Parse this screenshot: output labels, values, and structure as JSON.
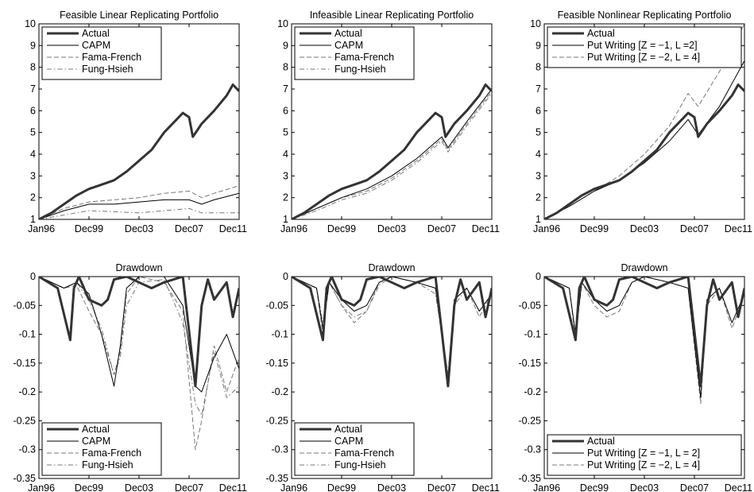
{
  "chart_data": [
    {
      "type": "line",
      "title": "Feasible Linear Replicating Portfolio",
      "xlim": [
        1996.0,
        2012.0
      ],
      "ylim": [
        1,
        10
      ],
      "xticks": [
        "Jan96",
        "Dec99",
        "Dec03",
        "Dec07",
        "Dec11"
      ],
      "yticks": [
        "1",
        "2",
        "3",
        "4",
        "5",
        "6",
        "7",
        "8",
        "9",
        "10"
      ],
      "legend": "top-left",
      "grid": false,
      "series": [
        {
          "name": "Actual",
          "style": "thick-solid",
          "x": [
            1996,
            1997,
            1998,
            1999,
            2000,
            2001,
            2002,
            2003,
            2004,
            2005,
            2006,
            2007,
            2007.5,
            2008,
            2008.3,
            2009,
            2010,
            2011,
            2011.5,
            2012
          ],
          "values": [
            1.0,
            1.3,
            1.7,
            2.1,
            2.4,
            2.6,
            2.8,
            3.2,
            3.7,
            4.2,
            5.0,
            5.6,
            5.9,
            5.7,
            4.8,
            5.4,
            6.0,
            6.7,
            7.2,
            6.9
          ]
        },
        {
          "name": "CAPM",
          "style": "solid",
          "x": [
            1996,
            1998,
            2000,
            2002,
            2004,
            2006,
            2008,
            2009,
            2010,
            2012
          ],
          "values": [
            1.0,
            1.4,
            1.7,
            1.7,
            1.8,
            1.9,
            1.9,
            1.7,
            1.9,
            2.2
          ]
        },
        {
          "name": "Fama-French",
          "style": "dashed",
          "x": [
            1996,
            1998,
            2000,
            2002,
            2004,
            2006,
            2008,
            2009,
            2010,
            2012
          ],
          "values": [
            1.0,
            1.5,
            1.8,
            1.9,
            2.0,
            2.2,
            2.3,
            2.0,
            2.2,
            2.55
          ]
        },
        {
          "name": "Fung-Hsieh",
          "style": "dash-dot",
          "x": [
            1996,
            1998,
            2000,
            2002,
            2004,
            2006,
            2008,
            2009,
            2010,
            2012
          ],
          "values": [
            1.0,
            1.2,
            1.4,
            1.35,
            1.3,
            1.4,
            1.5,
            1.3,
            1.3,
            1.3
          ]
        }
      ]
    },
    {
      "type": "line",
      "title": "Infeasible Linear Replicating Portfolio",
      "xlim": [
        1996.0,
        2012.0
      ],
      "ylim": [
        1,
        10
      ],
      "xticks": [
        "Jan96",
        "Dec99",
        "Dec03",
        "Dec07",
        "Dec11"
      ],
      "yticks": [
        "1",
        "2",
        "3",
        "4",
        "5",
        "6",
        "7",
        "8",
        "9",
        "10"
      ],
      "legend": "top-left",
      "grid": false,
      "series": [
        {
          "name": "Actual",
          "style": "thick-solid",
          "x": [
            1996,
            1997,
            1998,
            1999,
            2000,
            2001,
            2002,
            2003,
            2004,
            2005,
            2006,
            2007,
            2007.5,
            2008,
            2008.3,
            2009,
            2010,
            2011,
            2011.5,
            2012
          ],
          "values": [
            1.0,
            1.3,
            1.7,
            2.1,
            2.4,
            2.6,
            2.8,
            3.2,
            3.7,
            4.2,
            5.0,
            5.6,
            5.9,
            5.7,
            4.8,
            5.4,
            6.0,
            6.7,
            7.2,
            6.9
          ]
        },
        {
          "name": "CAPM",
          "style": "solid",
          "x": [
            1996,
            1998,
            2000,
            2002,
            2004,
            2006,
            2008,
            2008.5,
            2010,
            2012
          ],
          "values": [
            1.0,
            1.5,
            2.0,
            2.4,
            3.0,
            3.8,
            4.8,
            4.3,
            5.5,
            7.0
          ]
        },
        {
          "name": "Fama-French",
          "style": "dashed",
          "x": [
            1996,
            1998,
            2000,
            2002,
            2004,
            2006,
            2008,
            2008.5,
            2010,
            2012
          ],
          "values": [
            1.0,
            1.5,
            2.0,
            2.3,
            2.9,
            3.7,
            4.7,
            4.2,
            5.4,
            6.9
          ]
        },
        {
          "name": "Fung-Hsieh",
          "style": "dash-dot",
          "x": [
            1996,
            1998,
            2000,
            2002,
            2004,
            2006,
            2008,
            2008.5,
            2010,
            2012
          ],
          "values": [
            1.0,
            1.4,
            1.9,
            2.2,
            2.8,
            3.6,
            4.6,
            4.1,
            5.3,
            6.8
          ]
        }
      ]
    },
    {
      "type": "line",
      "title": "Feasible Nonlinear Replicating Portfolio",
      "xlim": [
        1996.0,
        2012.0
      ],
      "ylim": [
        1,
        10
      ],
      "xticks": [
        "Jan96",
        "Dec99",
        "Dec03",
        "Dec07",
        "Dec11"
      ],
      "yticks": [
        "1",
        "2",
        "3",
        "4",
        "5",
        "6",
        "7",
        "8",
        "9",
        "10"
      ],
      "legend": "top-left",
      "grid": false,
      "series": [
        {
          "name": "Actual",
          "style": "thick-solid",
          "x": [
            1996,
            1997,
            1998,
            1999,
            2000,
            2001,
            2002,
            2003,
            2004,
            2005,
            2006,
            2007,
            2007.5,
            2008,
            2008.3,
            2009,
            2010,
            2011,
            2011.5,
            2012
          ],
          "values": [
            1.0,
            1.3,
            1.7,
            2.1,
            2.4,
            2.6,
            2.8,
            3.2,
            3.7,
            4.2,
            5.0,
            5.6,
            5.9,
            5.7,
            4.8,
            5.4,
            6.0,
            6.7,
            7.2,
            6.9
          ]
        },
        {
          "name": "Put Writing [Z = −1, L =2]",
          "style": "solid",
          "x": [
            1996,
            1998,
            2000,
            2002,
            2004,
            2006,
            2007.5,
            2008.3,
            2010,
            2012
          ],
          "values": [
            1.0,
            1.6,
            2.3,
            2.8,
            3.6,
            4.6,
            5.6,
            4.9,
            6.2,
            8.3
          ]
        },
        {
          "name": "Put Writing [Z = −2, L = 4]",
          "style": "dashed",
          "x": [
            1996,
            1998,
            2000,
            2002,
            2004,
            2006,
            2007.5,
            2008.3,
            2010,
            2012
          ],
          "values": [
            1.0,
            1.6,
            2.3,
            3.0,
            4.0,
            5.3,
            6.8,
            6.2,
            7.8,
            10.0
          ]
        }
      ]
    },
    {
      "type": "line",
      "title": "Drawdown",
      "xlim": [
        1996.0,
        2012.0
      ],
      "ylim": [
        -0.35,
        0
      ],
      "xticks": [
        "Jan96",
        "Dec99",
        "Dec03",
        "Dec07",
        "Dec11"
      ],
      "yticks": [
        "0",
        "-0.05",
        "-0.1",
        "-0.15",
        "-0.2",
        "-0.25",
        "-0.3",
        "-0.35"
      ],
      "legend": "bottom-left",
      "grid": false,
      "series": [
        {
          "name": "Actual",
          "style": "thick-solid",
          "x": [
            1996,
            1997.5,
            1998.5,
            1998.8,
            1999.2,
            2000,
            2001,
            2001.5,
            2002,
            2003,
            2004,
            2005,
            2006,
            2007.5,
            2008.5,
            2009,
            2009.5,
            2010,
            2011,
            2011.5,
            2012
          ],
          "values": [
            0,
            -0.02,
            -0.11,
            -0.02,
            0,
            -0.04,
            -0.05,
            -0.04,
            -0.005,
            0,
            -0.01,
            -0.02,
            -0.01,
            0,
            -0.19,
            -0.05,
            -0.005,
            -0.04,
            -0.01,
            -0.07,
            -0.02
          ]
        },
        {
          "name": "CAPM",
          "style": "solid",
          "x": [
            1996,
            1998,
            1999,
            2000,
            2001,
            2002,
            2002.5,
            2003,
            2004,
            2006,
            2007.5,
            2008.5,
            2009,
            2010,
            2011,
            2012
          ],
          "values": [
            0,
            -0.02,
            -0.01,
            -0.03,
            -0.1,
            -0.19,
            -0.12,
            -0.02,
            0,
            0,
            -0.05,
            -0.19,
            -0.2,
            -0.14,
            -0.1,
            -0.16
          ]
        },
        {
          "name": "Fama-French",
          "style": "dashed",
          "x": [
            1996,
            1998,
            1999,
            2000,
            2001,
            2002,
            2002.5,
            2003,
            2004,
            2006,
            2007.5,
            2008.5,
            2009,
            2010,
            2011,
            2012
          ],
          "values": [
            0,
            -0.02,
            -0.015,
            -0.06,
            -0.1,
            -0.17,
            -0.13,
            -0.03,
            0,
            -0.01,
            -0.06,
            -0.3,
            -0.25,
            -0.12,
            -0.2,
            -0.14
          ]
        },
        {
          "name": "Fung-Hsieh",
          "style": "dash-dot",
          "x": [
            1996,
            1998,
            1999,
            2000,
            2001,
            2002,
            2002.5,
            2003,
            2004,
            2006,
            2007.5,
            2008.5,
            2009,
            2010,
            2011,
            2012
          ],
          "values": [
            0,
            -0.02,
            -0.01,
            -0.04,
            -0.09,
            -0.17,
            -0.14,
            -0.05,
            -0.01,
            -0.005,
            -0.08,
            -0.22,
            -0.24,
            -0.13,
            -0.21,
            -0.19
          ]
        }
      ]
    },
    {
      "type": "line",
      "title": "Drawdown",
      "xlim": [
        1996.0,
        2012.0
      ],
      "ylim": [
        -0.35,
        0
      ],
      "xticks": [
        "Jan96",
        "Dec99",
        "Dec03",
        "Dec07",
        "Dec11"
      ],
      "yticks": [
        "0",
        "-0.05",
        "-0.1",
        "-0.15",
        "-0.2",
        "-0.25",
        "-0.3",
        "-0.35"
      ],
      "legend": "bottom-left",
      "grid": false,
      "series": [
        {
          "name": "Actual",
          "style": "thick-solid",
          "x": [
            1996,
            1997.5,
            1998.5,
            1998.8,
            1999.2,
            2000,
            2001,
            2001.5,
            2002,
            2003,
            2004,
            2005,
            2006,
            2007.5,
            2008.5,
            2009,
            2009.5,
            2010,
            2011,
            2011.5,
            2012
          ],
          "values": [
            0,
            -0.02,
            -0.11,
            -0.02,
            0,
            -0.04,
            -0.05,
            -0.04,
            -0.005,
            0,
            -0.01,
            -0.02,
            -0.01,
            0,
            -0.19,
            -0.05,
            -0.005,
            -0.04,
            -0.01,
            -0.07,
            -0.02
          ]
        },
        {
          "name": "CAPM",
          "style": "solid",
          "x": [
            1996,
            1998,
            1998.5,
            1999,
            2000,
            2001,
            2002,
            2003,
            2004,
            2006,
            2007.5,
            2008.5,
            2009,
            2010,
            2011,
            2012
          ],
          "values": [
            0,
            -0.02,
            -0.09,
            -0.01,
            -0.04,
            -0.06,
            -0.05,
            -0.01,
            0,
            -0.01,
            -0.02,
            -0.18,
            -0.04,
            -0.02,
            -0.06,
            -0.03
          ]
        },
        {
          "name": "Fama-French",
          "style": "dashed",
          "x": [
            1996,
            1998,
            1998.5,
            1999,
            2000,
            2001,
            2002,
            2003,
            2004,
            2006,
            2007.5,
            2008.5,
            2009,
            2010,
            2011,
            2012
          ],
          "values": [
            0,
            -0.02,
            -0.1,
            -0.01,
            -0.05,
            -0.08,
            -0.06,
            -0.01,
            0,
            -0.01,
            -0.02,
            -0.17,
            -0.04,
            -0.02,
            -0.07,
            -0.03
          ]
        },
        {
          "name": "Fung-Hsieh",
          "style": "dash-dot",
          "x": [
            1996,
            1998,
            1998.5,
            1999,
            2000,
            2001,
            2002,
            2003,
            2004,
            2006,
            2007.5,
            2008.5,
            2009,
            2010,
            2011,
            2012
          ],
          "values": [
            0,
            -0.02,
            -0.08,
            -0.01,
            -0.05,
            -0.07,
            -0.06,
            -0.015,
            0,
            -0.01,
            -0.03,
            -0.17,
            -0.05,
            -0.02,
            -0.06,
            -0.03
          ]
        }
      ]
    },
    {
      "type": "line",
      "title": "Drawdown",
      "xlim": [
        1996.0,
        2012.0
      ],
      "ylim": [
        -0.35,
        0
      ],
      "xticks": [
        "Jan96",
        "Dec99",
        "Dec03",
        "Dec07",
        "Dec11"
      ],
      "yticks": [
        "0",
        "-0.05",
        "-0.1",
        "-0.15",
        "-0.2",
        "-0.25",
        "-0.3",
        "-0.35"
      ],
      "legend": "bottom-left",
      "grid": false,
      "series": [
        {
          "name": "Actual",
          "style": "thick-solid",
          "x": [
            1996,
            1997.5,
            1998.5,
            1998.8,
            1999.2,
            2000,
            2001,
            2001.5,
            2002,
            2003,
            2004,
            2005,
            2006,
            2007.5,
            2008.5,
            2009,
            2009.5,
            2010,
            2011,
            2011.5,
            2012
          ],
          "values": [
            0,
            -0.02,
            -0.11,
            -0.02,
            0,
            -0.04,
            -0.05,
            -0.04,
            -0.005,
            0,
            -0.01,
            -0.02,
            -0.01,
            0,
            -0.19,
            -0.05,
            -0.005,
            -0.04,
            -0.01,
            -0.07,
            -0.02
          ]
        },
        {
          "name": "Put Writing [Z = −1, L = 2]",
          "style": "solid",
          "x": [
            1996,
            1998,
            1998.5,
            1999,
            2000,
            2001,
            2002,
            2003,
            2004,
            2006,
            2007.5,
            2008.5,
            2009,
            2010,
            2011,
            2012
          ],
          "values": [
            0,
            -0.02,
            -0.1,
            -0.01,
            -0.04,
            -0.06,
            -0.05,
            -0.01,
            0,
            -0.01,
            -0.02,
            -0.21,
            -0.04,
            -0.02,
            -0.08,
            -0.03
          ]
        },
        {
          "name": "Put Writing [Z = −2, L = 4]",
          "style": "dashed",
          "x": [
            1996,
            1998,
            1998.5,
            1999,
            2000,
            2001,
            2002,
            2003,
            2004,
            2006,
            2007.5,
            2008.5,
            2009,
            2010,
            2011,
            2012
          ],
          "values": [
            0,
            -0.02,
            -0.11,
            -0.01,
            -0.05,
            -0.07,
            -0.06,
            -0.01,
            0,
            -0.01,
            -0.02,
            -0.22,
            -0.05,
            -0.02,
            -0.09,
            -0.03
          ]
        }
      ]
    }
  ]
}
